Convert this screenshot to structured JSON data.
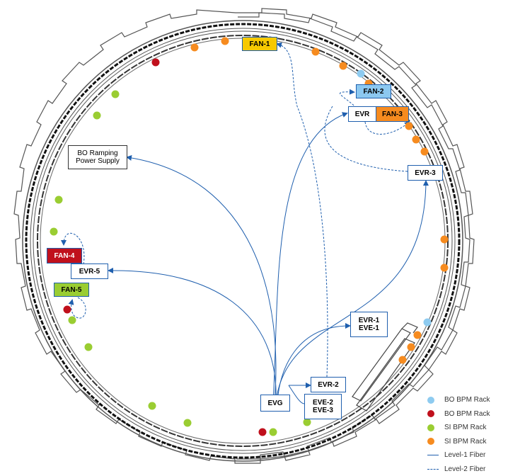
{
  "colors": {
    "bo_light": "#8ecbf0",
    "bo_red": "#c0101c",
    "si_green": "#9acd32",
    "si_orange": "#f68b1f",
    "fiber": "#1f5fae"
  },
  "nodes": {
    "fan1": "FAN-1",
    "fan2": "FAN-2",
    "fan3": "FAN-3",
    "fan4": "FAN-4",
    "fan5": "FAN-5",
    "evr_top": "EVR",
    "evr3": "EVR-3",
    "evr5": "EVR-5",
    "evr1_line1": "EVR-1",
    "evr1_line2": "EVE-1",
    "evr2": "EVR-2",
    "evg": "EVG",
    "eve23_line1": "EVE-2",
    "eve23_line2": "EVE-3",
    "bo_ramping_line1": "BO Ramping",
    "bo_ramping_line2": "Power Supply"
  },
  "legend": [
    {
      "label": "BO BPM Rack",
      "symbol": "dot",
      "color": "#8ecbf0"
    },
    {
      "label": "BO BPM Rack",
      "symbol": "dot",
      "color": "#c0101c"
    },
    {
      "label": "SI BPM Rack",
      "symbol": "dot",
      "color": "#9acd32"
    },
    {
      "label": "SI BPM Rack",
      "symbol": "dot",
      "color": "#f68b1f"
    },
    {
      "label": "Level-1 Fiber",
      "symbol": "solid-line",
      "color": "#1f5fae"
    },
    {
      "label": "Level-2 Fiber",
      "symbol": "dashed-line",
      "color": "#1f5fae"
    }
  ]
}
